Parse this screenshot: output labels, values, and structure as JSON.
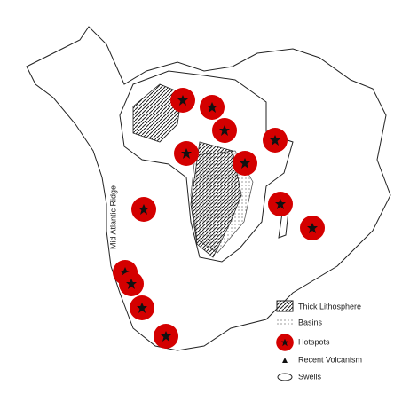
{
  "map": {
    "ridge_label": "Mid Atlantic Ridge",
    "legend": [
      "Thick Lithosphere",
      "Basins",
      "Hotspots",
      "Recent Volcanism",
      "Swells"
    ]
  }
}
